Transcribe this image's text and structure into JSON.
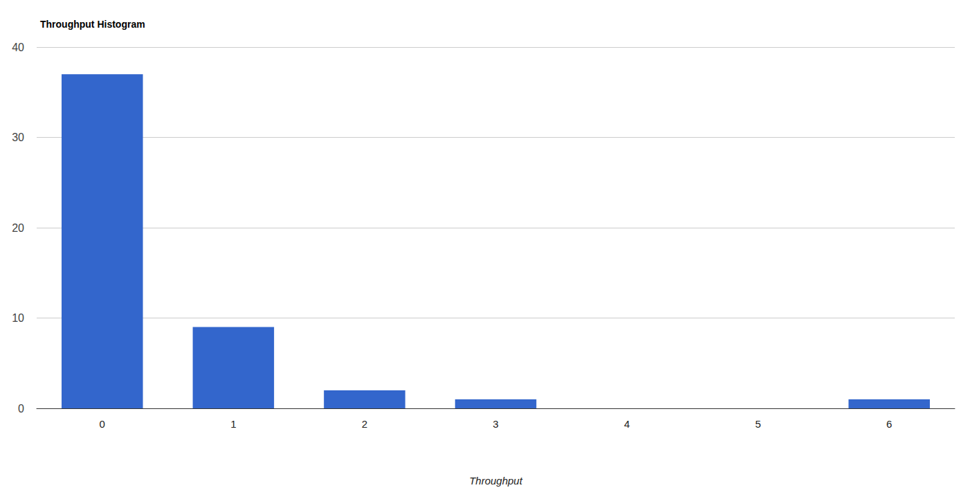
{
  "chart_data": {
    "type": "bar",
    "title": "Throughput Histogram",
    "x_label": "Throughput",
    "categories": [
      "0",
      "1",
      "2",
      "3",
      "4",
      "5",
      "6"
    ],
    "values": [
      37,
      9,
      2,
      1,
      0,
      0,
      1
    ],
    "color": "#3366cc",
    "ylim": [
      0,
      40
    ],
    "yticks": [
      0,
      10,
      20,
      30,
      40
    ],
    "grid": true
  }
}
